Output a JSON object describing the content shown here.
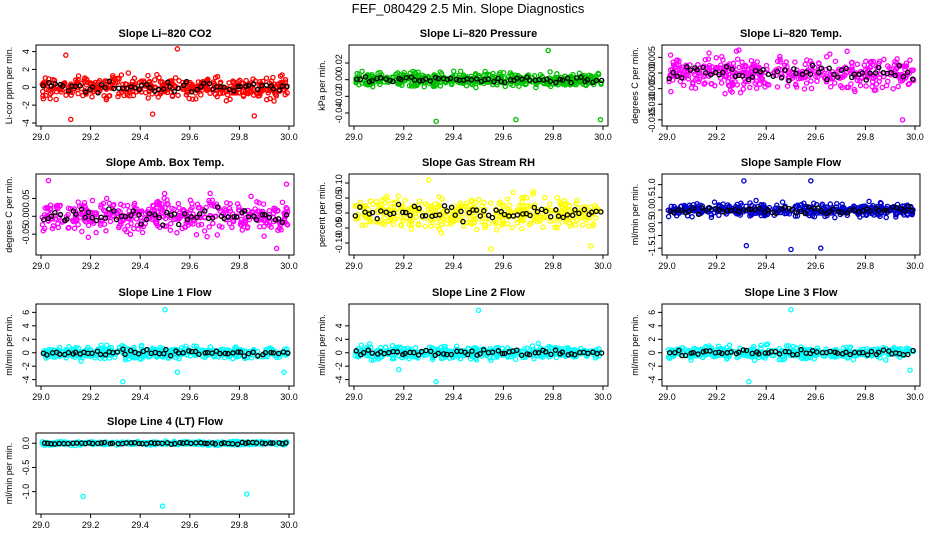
{
  "figure_title": "FEF_080429  2.5 Min. Slope Diagnostics",
  "chart_data": [
    {
      "type": "scatter",
      "title": "Slope Li–820 CO2",
      "ylabel": "Li-cor ppm per min.",
      "color": "#ff0000",
      "xlim": [
        29.0,
        30.0
      ],
      "ylim": [
        -4,
        4.4
      ],
      "xticks": [
        29.0,
        29.2,
        29.4,
        29.6,
        29.8,
        30.0
      ],
      "yticks": [
        -4,
        -2,
        0,
        2,
        4
      ],
      "yticklabels": [
        "-4",
        "-2",
        "0",
        "2",
        "4"
      ],
      "spread": 1.2,
      "outliers": [
        [
          29.55,
          4.3
        ],
        [
          29.1,
          3.6
        ],
        [
          29.12,
          -3.6
        ],
        [
          29.45,
          -3.0
        ],
        [
          29.86,
          -3.2
        ]
      ]
    },
    {
      "type": "scatter",
      "title": "Slope Li–820 Pressure",
      "ylabel": "kPa per min.",
      "color": "#00c000",
      "xlim": [
        29.0,
        30.0
      ],
      "ylim": [
        -0.052,
        0.038
      ],
      "xticks": [
        29.0,
        29.2,
        29.4,
        29.6,
        29.8,
        30.0
      ],
      "yticks": [
        -0.04,
        -0.02,
        0.0,
        0.02
      ],
      "yticklabels": [
        "-0.04",
        "-0.02",
        "0.00",
        "0.02"
      ],
      "spread": 0.008,
      "outliers": [
        [
          29.78,
          0.035
        ],
        [
          29.33,
          -0.05
        ],
        [
          29.65,
          -0.048
        ],
        [
          29.99,
          -0.048
        ]
      ]
    },
    {
      "type": "scatter",
      "title": "Slope Li–820 Temp.",
      "ylabel": "degrees C per min.",
      "color": "#ff00ff",
      "xlim": [
        29.0,
        30.0
      ],
      "ylim": [
        -0.016,
        0.008
      ],
      "xticks": [
        29.0,
        29.2,
        29.4,
        29.6,
        29.8,
        30.0
      ],
      "yticks": [
        -0.015,
        -0.01,
        -0.005,
        0.0,
        0.005
      ],
      "yticklabels": [
        "-0.015",
        "-0.010",
        "-0.005",
        "0.000",
        "0.005"
      ],
      "spread": 0.005,
      "outliers": [
        [
          29.28,
          0.007
        ],
        [
          29.95,
          -0.015
        ]
      ]
    },
    {
      "type": "scatter",
      "title": "Slope Amb. Box Temp.",
      "ylabel": "degrees C per min.",
      "color": "#ff00ff",
      "xlim": [
        29.0,
        30.0
      ],
      "ylim": [
        -0.1,
        0.11
      ],
      "xticks": [
        29.0,
        29.2,
        29.4,
        29.6,
        29.8,
        30.0
      ],
      "yticks": [
        -0.05,
        0.0,
        0.05
      ],
      "yticklabels": [
        "-0.05",
        "0.00",
        "0.05"
      ],
      "spread": 0.045,
      "outliers": [
        [
          29.03,
          0.1
        ],
        [
          29.99,
          0.09
        ],
        [
          29.95,
          -0.09
        ]
      ]
    },
    {
      "type": "scatter",
      "title": "Slope Gas Stream RH",
      "ylabel": "percent per min.",
      "color": "#ffff00",
      "xlim": [
        29.0,
        30.0
      ],
      "ylim": [
        -0.13,
        0.12
      ],
      "xticks": [
        29.0,
        29.2,
        29.4,
        29.6,
        29.8,
        30.0
      ],
      "yticks": [
        -0.1,
        -0.05,
        0.0,
        0.05,
        0.1
      ],
      "yticklabels": [
        "-0.10",
        "-0.05",
        "0.00",
        "0.05",
        "0.10"
      ],
      "spread": 0.05,
      "outliers": [
        [
          29.3,
          0.11
        ],
        [
          29.55,
          -0.12
        ],
        [
          29.95,
          -0.11
        ]
      ]
    },
    {
      "type": "scatter",
      "title": "Slope Sample Flow",
      "ylabel": "ml/min per min.",
      "color": "#0000cc",
      "xlim": [
        29.0,
        30.0
      ],
      "ylim": [
        -1.65,
        1.3
      ],
      "xticks": [
        29.0,
        29.2,
        29.4,
        29.6,
        29.8,
        30.0
      ],
      "yticks": [
        -1.5,
        -1.0,
        -0.5,
        0.0,
        0.5,
        1.0
      ],
      "yticklabels": [
        "-1.5",
        "-1.0",
        "-0.5",
        "0.0",
        "0.5",
        "1.0"
      ],
      "spread": 0.25,
      "outliers": [
        [
          29.31,
          1.15
        ],
        [
          29.58,
          1.15
        ],
        [
          29.5,
          -1.55
        ],
        [
          29.62,
          -1.5
        ],
        [
          29.32,
          -1.4
        ]
      ]
    },
    {
      "type": "scatter",
      "title": "Slope Line 1 Flow",
      "ylabel": "ml/min per min.",
      "color": "#00ffff",
      "xlim": [
        29.0,
        30.0
      ],
      "ylim": [
        -4.5,
        6.8
      ],
      "xticks": [
        29.0,
        29.2,
        29.4,
        29.6,
        29.8,
        30.0
      ],
      "yticks": [
        -4,
        -2,
        0,
        2,
        4,
        6
      ],
      "yticklabels": [
        "-4",
        "-2",
        "0",
        "2",
        "4",
        "6"
      ],
      "spread": 0.9,
      "outliers": [
        [
          29.5,
          6.4
        ],
        [
          29.33,
          -4.3
        ],
        [
          29.55,
          -2.9
        ],
        [
          29.98,
          -2.9
        ]
      ]
    },
    {
      "type": "scatter",
      "title": "Slope Line 2 Flow",
      "ylabel": "ml/min per min.",
      "color": "#00ffff",
      "xlim": [
        29.0,
        30.0
      ],
      "ylim": [
        -4.5,
        6.8
      ],
      "xticks": [
        29.0,
        29.2,
        29.4,
        29.6,
        29.8,
        30.0
      ],
      "yticks": [
        -4,
        -2,
        0,
        2,
        4
      ],
      "yticklabels": [
        "-4",
        "-2",
        "0",
        "2",
        "4"
      ],
      "spread": 0.9,
      "outliers": [
        [
          29.5,
          6.3
        ],
        [
          29.33,
          -4.3
        ],
        [
          29.18,
          -2.5
        ]
      ]
    },
    {
      "type": "scatter",
      "title": "Slope Line 3 Flow",
      "ylabel": "ml/min per min.",
      "color": "#00ffff",
      "xlim": [
        29.0,
        30.0
      ],
      "ylim": [
        -4.5,
        6.8
      ],
      "xticks": [
        29.0,
        29.2,
        29.4,
        29.6,
        29.8,
        30.0
      ],
      "yticks": [
        -4,
        -2,
        0,
        2,
        4,
        6
      ],
      "yticklabels": [
        "-4",
        "-2",
        "0",
        "2",
        "4",
        "6"
      ],
      "spread": 0.9,
      "outliers": [
        [
          29.5,
          6.4
        ],
        [
          29.33,
          -4.3
        ],
        [
          29.98,
          -2.6
        ]
      ]
    },
    {
      "type": "scatter",
      "title": "Slope Line 4 (LT) Flow",
      "ylabel": "ml/min per min.",
      "color": "#00ffff",
      "xlim": [
        29.0,
        30.0
      ],
      "ylim": [
        -1.4,
        0.15
      ],
      "xticks": [
        29.0,
        29.2,
        29.4,
        29.6,
        29.8,
        30.0
      ],
      "yticks": [
        -1.0,
        -0.5,
        0.0
      ],
      "yticklabels": [
        "-1.0",
        "-0.5",
        "0.0"
      ],
      "spread": 0.035,
      "outliers": [
        [
          29.17,
          -1.1
        ],
        [
          29.83,
          -1.05
        ],
        [
          29.49,
          -1.3
        ]
      ]
    }
  ]
}
